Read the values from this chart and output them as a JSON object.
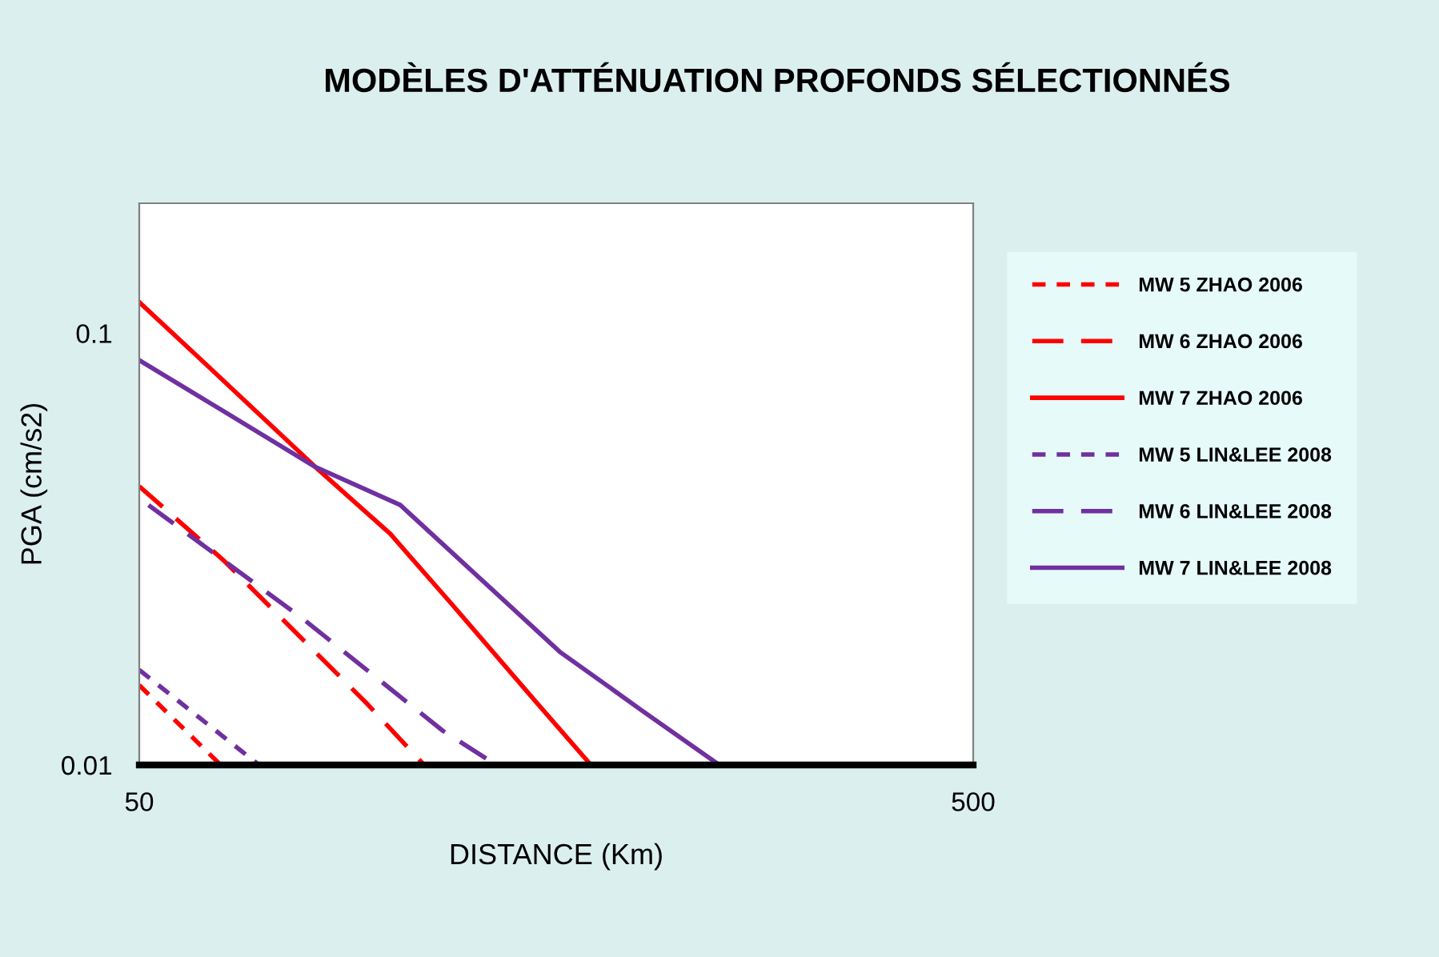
{
  "chart_data": {
    "type": "line",
    "title": "MODÈLES D'ATTÉNUATION PROFONDS SÉLECTIONNÉS",
    "xlabel": "DISTANCE (Km)",
    "ylabel": "PGA (cm/s2)",
    "log": "xy",
    "xlim": [
      50,
      500
    ],
    "ylim": [
      0.01,
      0.2
    ],
    "xticks": [
      50,
      500
    ],
    "yticks": [
      0.01,
      0.1
    ],
    "grid": false,
    "legend": "right",
    "series": [
      {
        "name": "MW 5 ZHAO 2006",
        "color": "#ff0000",
        "line_style": "dotted",
        "x": [
          50,
          62.6
        ],
        "values": [
          0.0153,
          0.01
        ]
      },
      {
        "name": "MW 6 ZHAO 2006",
        "color": "#ff0000",
        "line_style": "dashed",
        "x": [
          50,
          63.2,
          94,
          109.8
        ],
        "values": [
          0.0442,
          0.0297,
          0.0138,
          0.01
        ]
      },
      {
        "name": "MW 7 ZHAO 2006",
        "color": "#ff0000",
        "line_style": "solid",
        "x": [
          50,
          60,
          81.3,
          100,
          118.9,
          150,
          174
        ],
        "values": [
          0.118,
          0.085,
          0.049,
          0.0343,
          0.0234,
          0.0139,
          0.01
        ]
      },
      {
        "name": "MW 5 LIN&LEE 2008",
        "color": "#7030a0",
        "line_style": "dotted",
        "x": [
          50,
          69.6
        ],
        "values": [
          0.0166,
          0.01
        ]
      },
      {
        "name": "MW 6 LIN&LEE 2008",
        "color": "#7030a0",
        "line_style": "dashed",
        "x": [
          51.3,
          78.8,
          115.6,
          134
        ],
        "values": [
          0.04,
          0.0217,
          0.012,
          0.01
        ]
      },
      {
        "name": "MW 7 LIN&LEE 2008",
        "color": "#7030a0",
        "line_style": "solid",
        "x": [
          50,
          60,
          81.3,
          102.8,
          159.6,
          200,
          248
        ],
        "values": [
          0.0866,
          0.07,
          0.049,
          0.04,
          0.0183,
          0.0134,
          0.01
        ]
      }
    ]
  }
}
